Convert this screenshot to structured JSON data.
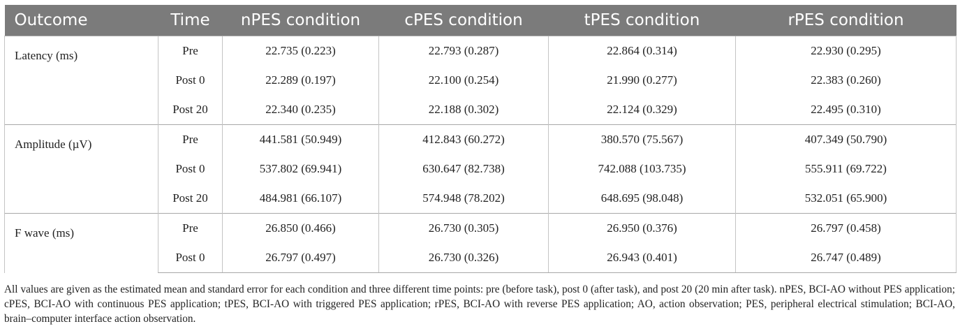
{
  "table": {
    "headers": [
      "Outcome",
      "Time",
      "nPES condition",
      "cPES condition",
      "tPES condition",
      "rPES condition"
    ],
    "groups": [
      {
        "outcome": "Latency (ms)",
        "rows": [
          {
            "time": "Pre",
            "values": [
              "22.735 (0.223)",
              "22.793 (0.287)",
              "22.864 (0.314)",
              "22.930 (0.295)"
            ]
          },
          {
            "time": "Post 0",
            "values": [
              "22.289 (0.197)",
              "22.100 (0.254)",
              "21.990 (0.277)",
              "22.383 (0.260)"
            ]
          },
          {
            "time": "Post 20",
            "values": [
              "22.340 (0.235)",
              "22.188 (0.302)",
              "22.124 (0.329)",
              "22.495 (0.310)"
            ]
          }
        ]
      },
      {
        "outcome": "Amplitude (µV)",
        "rows": [
          {
            "time": "Pre",
            "values": [
              "441.581 (50.949)",
              "412.843 (60.272)",
              "380.570 (75.567)",
              "407.349 (50.790)"
            ]
          },
          {
            "time": "Post 0",
            "values": [
              "537.802 (69.941)",
              "630.647 (82.738)",
              "742.088 (103.735)",
              "555.911 (69.722)"
            ]
          },
          {
            "time": "Post 20",
            "values": [
              "484.981 (66.107)",
              "574.948 (78.202)",
              "648.695 (98.048)",
              "532.051 (65.900)"
            ]
          }
        ]
      },
      {
        "outcome": "F wave (ms)",
        "rows": [
          {
            "time": "Pre",
            "values": [
              "26.850 (0.466)",
              "26.730 (0.305)",
              "26.950 (0.376)",
              "26.797 (0.458)"
            ]
          },
          {
            "time": "Post 0",
            "values": [
              "26.797 (0.497)",
              "26.730 (0.326)",
              "26.943 (0.401)",
              "26.747 (0.489)"
            ]
          }
        ]
      }
    ]
  },
  "footnote": "All values are given as the estimated mean and standard error for each condition and three different time points: pre (before task), post 0 (after task), and post 20 (20 min after task). nPES, BCI-AO without PES application; cPES, BCI-AO with continuous PES application; tPES, BCI-AO with triggered PES application; rPES, BCI-AO with reverse PES application; AO, action observation; PES, peripheral electrical stimulation; BCI-AO, brain–computer interface action observation.",
  "colors": {
    "header_bg": "#7b7b7b",
    "header_text": "#ffffff",
    "rule": "#a8a8a8"
  }
}
